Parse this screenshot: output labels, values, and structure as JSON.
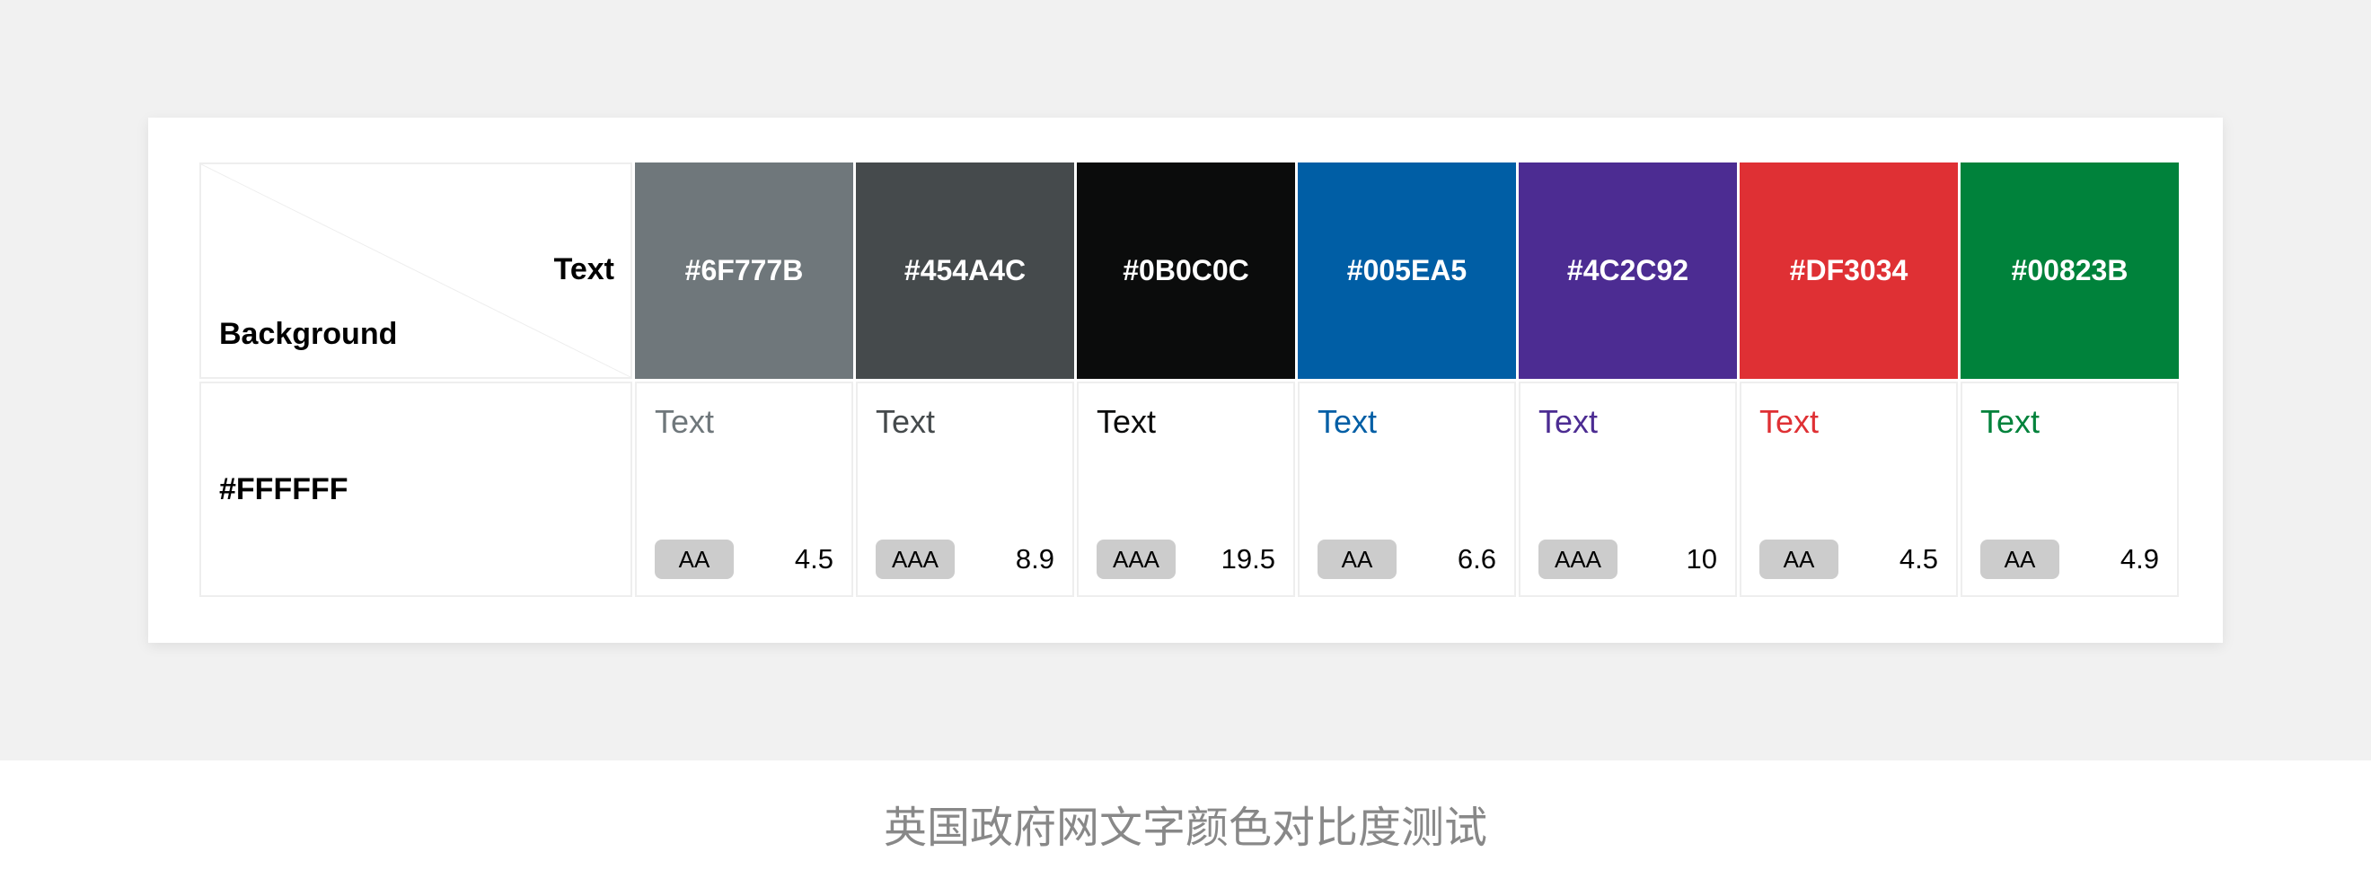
{
  "header": {
    "text_label": "Text",
    "background_label": "Background"
  },
  "row": {
    "background": "#FFFFFF"
  },
  "sample_text": "Text",
  "columns": [
    {
      "color": "#6F777B",
      "level": "AA",
      "ratio": "4.5"
    },
    {
      "color": "#454A4C",
      "level": "AAA",
      "ratio": "8.9"
    },
    {
      "color": "#0B0C0C",
      "level": "AAA",
      "ratio": "19.5"
    },
    {
      "color": "#005EA5",
      "level": "AA",
      "ratio": "6.6"
    },
    {
      "color": "#4C2C92",
      "level": "AAA",
      "ratio": "10"
    },
    {
      "color": "#DF3034",
      "level": "AA",
      "ratio": "4.5"
    },
    {
      "color": "#00823B",
      "level": "AA",
      "ratio": "4.9"
    }
  ],
  "caption": "英国政府网文字颜色对比度测试"
}
